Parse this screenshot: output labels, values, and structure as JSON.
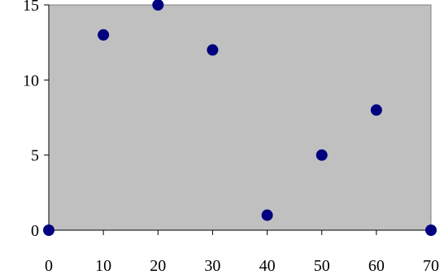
{
  "chart_data": {
    "type": "scatter",
    "title": "",
    "xlabel": "",
    "ylabel": "",
    "xlim": [
      0,
      70
    ],
    "ylim": [
      0,
      15
    ],
    "x_ticks": [
      0,
      10,
      20,
      30,
      40,
      50,
      60,
      70
    ],
    "y_ticks": [
      0,
      5,
      10,
      15
    ],
    "x_tick_labels": [
      "0",
      "10",
      "20",
      "30",
      "40",
      "50",
      "60",
      "70"
    ],
    "y_tick_labels": [
      "0",
      "5",
      "10",
      "15"
    ],
    "grid": false,
    "legend": "none",
    "series": [
      {
        "points": [
          {
            "x": 0,
            "y": 0
          },
          {
            "x": 10,
            "y": 13
          },
          {
            "x": 20,
            "y": 15
          },
          {
            "x": 30,
            "y": 12
          },
          {
            "x": 40,
            "y": 1
          },
          {
            "x": 50,
            "y": 5
          },
          {
            "x": 60,
            "y": 8
          },
          {
            "x": 70,
            "y": 0
          }
        ]
      }
    ],
    "colors": {
      "plot_background": "#c0c0c0",
      "marker": "#000080",
      "axis": "#000000"
    }
  }
}
